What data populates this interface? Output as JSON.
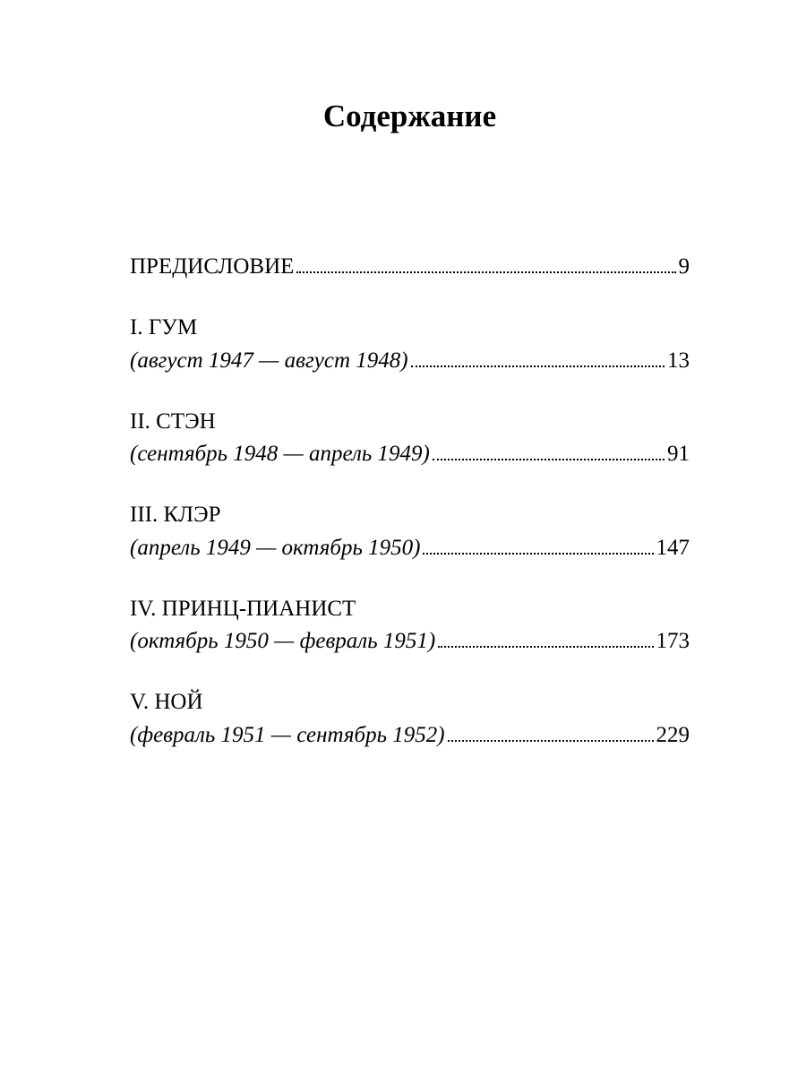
{
  "page": {
    "background_color": "#ffffff",
    "text_color": "#000000",
    "font_family": "Georgia, Times New Roman, serif",
    "title_fontsize": 35,
    "body_fontsize": 25,
    "leader_style": "dotted"
  },
  "title": "Содержание",
  "entries": [
    {
      "title": "ПРЕДИСЛОВИЕ",
      "subtitle": "",
      "page": "9"
    },
    {
      "title": "I. ГУМ",
      "subtitle": "(август 1947 — август 1948)",
      "page": "13"
    },
    {
      "title": "II. СТЭН",
      "subtitle": "(сентябрь 1948 — апрель 1949)",
      "page": "91"
    },
    {
      "title": "III. КЛЭР",
      "subtitle": "(апрель 1949 — октябрь 1950)",
      "page": "147"
    },
    {
      "title": "IV. ПРИНЦ-ПИАНИСТ",
      "subtitle": "(октябрь 1950 — февраль 1951)",
      "page": "173"
    },
    {
      "title": "V. НОЙ",
      "subtitle": "(февраль 1951 — сентябрь 1952)",
      "page": "229"
    }
  ]
}
